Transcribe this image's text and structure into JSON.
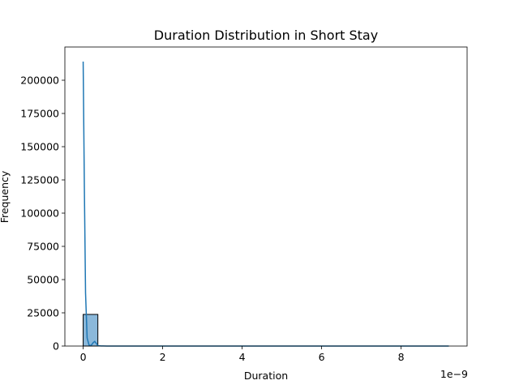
{
  "chart_data": {
    "type": "bar",
    "title": "Duration Distribution in Short Stay",
    "xlabel": "Duration",
    "ylabel": "Frequency",
    "x_offset_label": "1e−9",
    "xlim": [
      -0.46,
      9.66
    ],
    "ylim": [
      0,
      225000
    ],
    "x_ticks": [
      0,
      2,
      4,
      6,
      8
    ],
    "x_tick_labels": [
      "0",
      "2",
      "4",
      "6",
      "8"
    ],
    "y_ticks": [
      0,
      25000,
      50000,
      75000,
      100000,
      125000,
      150000,
      175000,
      200000
    ],
    "y_tick_labels": [
      "0",
      "25000",
      "50000",
      "75000",
      "100000",
      "125000",
      "150000",
      "175000",
      "200000"
    ],
    "bins": [
      {
        "x0": 0,
        "x1": 0.37,
        "count": 23800
      },
      {
        "x0": 0.37,
        "x1": 9.2,
        "count": 0
      }
    ],
    "kde": {
      "x": [
        0,
        0.03,
        0.06,
        0.1,
        0.15,
        0.2,
        0.25,
        0.29,
        0.33,
        0.37,
        0.45,
        0.6,
        1,
        2,
        4,
        6,
        8,
        9.2
      ],
      "y": [
        214000,
        120000,
        40000,
        6000,
        600,
        400,
        2500,
        3500,
        2000,
        300,
        60,
        10,
        0,
        0,
        0,
        0,
        0,
        0
      ]
    },
    "grid": false,
    "legend": "none",
    "colors": {
      "bar_fill": "#8bb8da",
      "bar_edge": "#000000",
      "kde_line": "#1f77b4"
    }
  }
}
